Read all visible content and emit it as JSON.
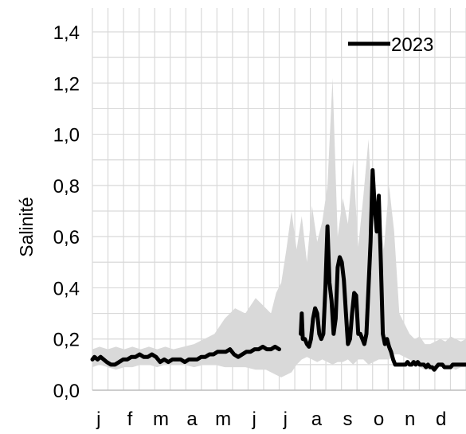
{
  "chart_data": {
    "type": "line",
    "ylabel": "Salinité",
    "xlabel": "",
    "ylim": [
      0.0,
      1.4
    ],
    "yticks": [
      "0,0",
      "0,2",
      "0,4",
      "0,6",
      "0,8",
      "1,0",
      "1,2",
      "1,4"
    ],
    "x_unit": "day of year",
    "months": [
      "j",
      "f",
      "m",
      "a",
      "m",
      "j",
      "j",
      "a",
      "s",
      "o",
      "n",
      "d"
    ],
    "grid": true,
    "legend_position": "top-right",
    "colors": {
      "line": "#000000",
      "band": "#d9d9d9",
      "grid": "#d9d9d9"
    },
    "range_band": {
      "description_of": "historical min-max envelope",
      "x": [
        1,
        8,
        16,
        24,
        32,
        40,
        48,
        56,
        64,
        72,
        80,
        90,
        100,
        110,
        120,
        130,
        140,
        150,
        160,
        170,
        175,
        180,
        185,
        190,
        195,
        200,
        205,
        210,
        215,
        220,
        225,
        230,
        235,
        240,
        245,
        250,
        255,
        260,
        265,
        270,
        275,
        280,
        285,
        290,
        295,
        300,
        305,
        310,
        315,
        320,
        325,
        330,
        335,
        340,
        345,
        350,
        355,
        360,
        365
      ],
      "low": [
        0.09,
        0.1,
        0.09,
        0.08,
        0.09,
        0.09,
        0.1,
        0.1,
        0.09,
        0.1,
        0.1,
        0.1,
        0.09,
        0.1,
        0.1,
        0.09,
        0.09,
        0.09,
        0.08,
        0.08,
        0.07,
        0.06,
        0.05,
        0.06,
        0.07,
        0.1,
        0.12,
        0.13,
        0.12,
        0.11,
        0.12,
        0.11,
        0.1,
        0.11,
        0.11,
        0.12,
        0.1,
        0.12,
        0.12,
        0.1,
        0.11,
        0.12,
        0.12,
        0.12,
        0.14,
        0.14,
        0.13,
        0.12,
        0.1,
        0.09,
        0.08,
        0.08,
        0.09,
        0.09,
        0.09,
        0.09,
        0.08,
        0.09,
        0.09
      ],
      "high": [
        0.16,
        0.17,
        0.16,
        0.17,
        0.16,
        0.17,
        0.16,
        0.17,
        0.16,
        0.17,
        0.16,
        0.17,
        0.18,
        0.2,
        0.22,
        0.28,
        0.32,
        0.3,
        0.36,
        0.32,
        0.3,
        0.38,
        0.42,
        0.55,
        0.7,
        0.55,
        0.68,
        0.5,
        0.72,
        0.58,
        0.66,
        0.8,
        1.22,
        0.6,
        0.75,
        0.65,
        0.9,
        0.56,
        0.76,
        0.98,
        0.6,
        0.7,
        0.55,
        0.8,
        0.62,
        0.3,
        0.26,
        0.22,
        0.2,
        0.21,
        0.18,
        0.18,
        0.19,
        0.2,
        0.19,
        0.21,
        0.2,
        0.19,
        0.2
      ]
    },
    "series": [
      {
        "name": "2023",
        "x": [
          1,
          3,
          6,
          9,
          12,
          15,
          19,
          23,
          27,
          31,
          35,
          39,
          43,
          47,
          51,
          55,
          59,
          63,
          67,
          71,
          75,
          79,
          83,
          87,
          91,
          95,
          99,
          103,
          107,
          111,
          115,
          119,
          123,
          127,
          131,
          135,
          139,
          143,
          147,
          151,
          155,
          159,
          163,
          167,
          171,
          175,
          179,
          183
        ],
        "values": [
          0.12,
          0.13,
          0.12,
          0.13,
          0.12,
          0.11,
          0.1,
          0.1,
          0.11,
          0.12,
          0.12,
          0.13,
          0.13,
          0.14,
          0.13,
          0.13,
          0.14,
          0.13,
          0.11,
          0.12,
          0.11,
          0.12,
          0.12,
          0.12,
          0.11,
          0.12,
          0.12,
          0.12,
          0.13,
          0.13,
          0.14,
          0.14,
          0.15,
          0.15,
          0.15,
          0.16,
          0.14,
          0.13,
          0.14,
          0.15,
          0.15,
          0.16,
          0.16,
          0.17,
          0.16,
          0.16,
          0.17,
          0.16
        ],
        "gap_after_day": 183
      },
      {
        "name": "2023",
        "x": [
          204,
          205,
          206,
          208,
          210,
          212,
          214,
          216,
          218,
          220,
          222,
          224,
          226,
          228,
          230,
          232,
          234,
          236,
          238,
          240,
          242,
          244,
          246,
          248,
          250,
          252,
          254,
          256,
          258,
          260,
          262,
          264,
          266,
          268,
          270,
          272,
          274,
          276,
          278,
          280,
          282,
          284,
          286,
          288,
          290,
          292,
          294,
          296,
          298,
          300,
          302,
          304,
          306,
          308,
          310,
          312,
          314,
          316,
          318,
          320,
          322,
          324,
          326,
          328,
          330,
          332,
          334,
          336,
          338,
          340,
          342,
          344,
          346,
          348,
          350,
          352,
          354,
          356,
          358,
          360,
          362,
          365
        ],
        "values": [
          0.22,
          0.3,
          0.2,
          0.2,
          0.18,
          0.17,
          0.2,
          0.28,
          0.32,
          0.3,
          0.22,
          0.2,
          0.22,
          0.4,
          0.64,
          0.42,
          0.35,
          0.22,
          0.28,
          0.48,
          0.52,
          0.5,
          0.43,
          0.3,
          0.18,
          0.2,
          0.3,
          0.38,
          0.37,
          0.22,
          0.22,
          0.2,
          0.18,
          0.22,
          0.4,
          0.58,
          0.86,
          0.72,
          0.62,
          0.76,
          0.5,
          0.22,
          0.18,
          0.2,
          0.17,
          0.15,
          0.12,
          0.1,
          0.1,
          0.1,
          0.1,
          0.1,
          0.1,
          0.11,
          0.1,
          0.1,
          0.11,
          0.1,
          0.11,
          0.1,
          0.1,
          0.1,
          0.09,
          0.1,
          0.09,
          0.09,
          0.08,
          0.09,
          0.1,
          0.1,
          0.1,
          0.09,
          0.09,
          0.09,
          0.09,
          0.1,
          0.1,
          0.1,
          0.1,
          0.1,
          0.1,
          0.1
        ]
      }
    ],
    "legend": [
      {
        "label": "2023"
      }
    ]
  }
}
